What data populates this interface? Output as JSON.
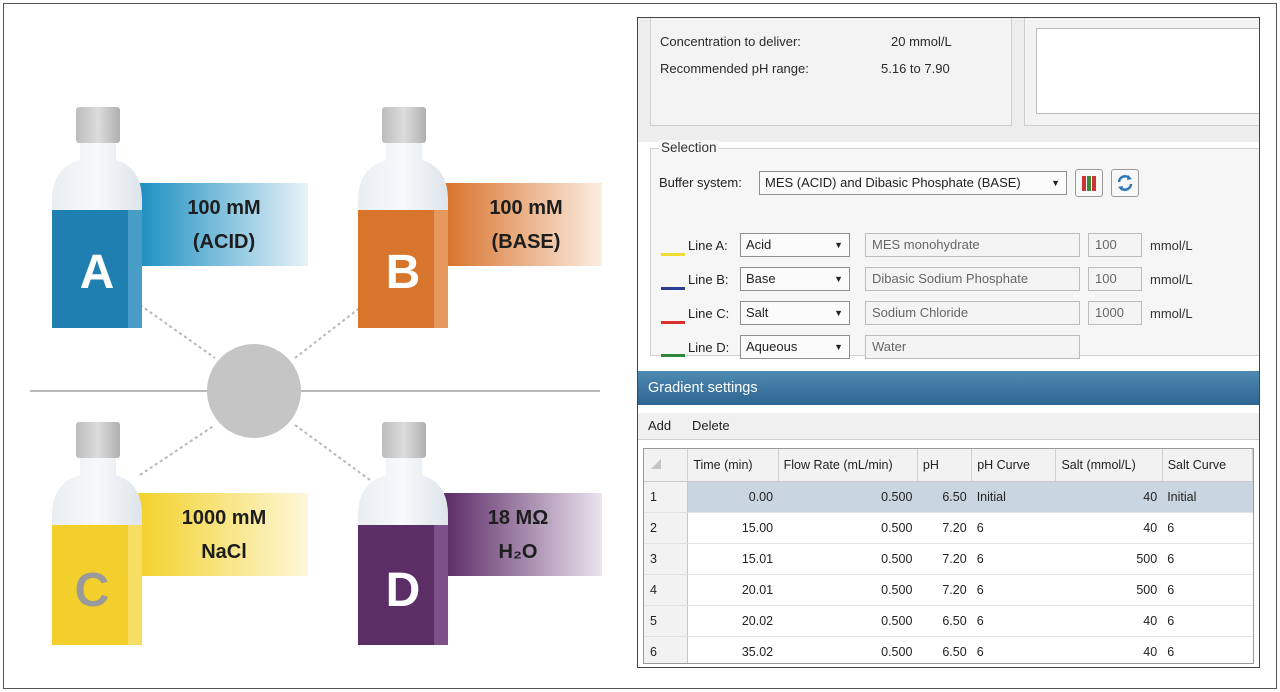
{
  "bottles": [
    {
      "letter": "A",
      "line1": "100 mM",
      "line2": "(ACID)",
      "color": "#1f7fb0"
    },
    {
      "letter": "B",
      "line1": "100 mM",
      "line2": "(BASE)",
      "color": "#d6752b"
    },
    {
      "letter": "C",
      "line1": "1000 mM",
      "line2": "NaCl",
      "color": "#f3cf2b"
    },
    {
      "letter": "D",
      "line1": "18 MΩ",
      "line2": "H₂O",
      "color": "#5b2e66"
    }
  ],
  "info": {
    "concentration_label": "Concentration to deliver:",
    "concentration_value": "20  mmol/L",
    "ph_label": "Recommended pH range:",
    "ph_value": "5.16 to 7.90"
  },
  "selection": {
    "title": "Selection",
    "buffer_label": "Buffer system:",
    "buffer_value": "MES (ACID) and Dibasic Phosphate (BASE)",
    "lines": [
      {
        "label": "Line A:",
        "type": "Acid",
        "reagent": "MES monohydrate",
        "conc": "100",
        "unit": "mmol/L",
        "color": "#f0dc30"
      },
      {
        "label": "Line B:",
        "type": "Base",
        "reagent": "Dibasic Sodium Phosphate",
        "conc": "100",
        "unit": "mmol/L",
        "color": "#2b3d8f"
      },
      {
        "label": "Line C:",
        "type": "Salt",
        "reagent": "Sodium Chloride",
        "conc": "1000",
        "unit": "mmol/L",
        "color": "#d9302c"
      },
      {
        "label": "Line D:",
        "type": "Aqueous",
        "reagent": "Water",
        "conc": "",
        "unit": "",
        "color": "#2e8a3a"
      }
    ]
  },
  "gradient": {
    "title": "Gradient settings",
    "add_label": "Add",
    "delete_label": "Delete",
    "columns": [
      "Time (min)",
      "Flow Rate (mL/min)",
      "pH",
      "pH Curve",
      "Salt (mmol/L)",
      "Salt Curve"
    ],
    "rows": [
      {
        "n": "1",
        "time": "0.00",
        "flow": "0.500",
        "ph": "6.50",
        "ph_curve": "Initial",
        "salt": "40",
        "salt_curve": "Initial"
      },
      {
        "n": "2",
        "time": "15.00",
        "flow": "0.500",
        "ph": "7.20",
        "ph_curve": "6",
        "salt": "40",
        "salt_curve": "6"
      },
      {
        "n": "3",
        "time": "15.01",
        "flow": "0.500",
        "ph": "7.20",
        "ph_curve": "6",
        "salt": "500",
        "salt_curve": "6"
      },
      {
        "n": "4",
        "time": "20.01",
        "flow": "0.500",
        "ph": "7.20",
        "ph_curve": "6",
        "salt": "500",
        "salt_curve": "6"
      },
      {
        "n": "5",
        "time": "20.02",
        "flow": "0.500",
        "ph": "6.50",
        "ph_curve": "6",
        "salt": "40",
        "salt_curve": "6"
      },
      {
        "n": "6",
        "time": "35.02",
        "flow": "0.500",
        "ph": "6.50",
        "ph_curve": "6",
        "salt": "40",
        "salt_curve": "6"
      }
    ]
  }
}
